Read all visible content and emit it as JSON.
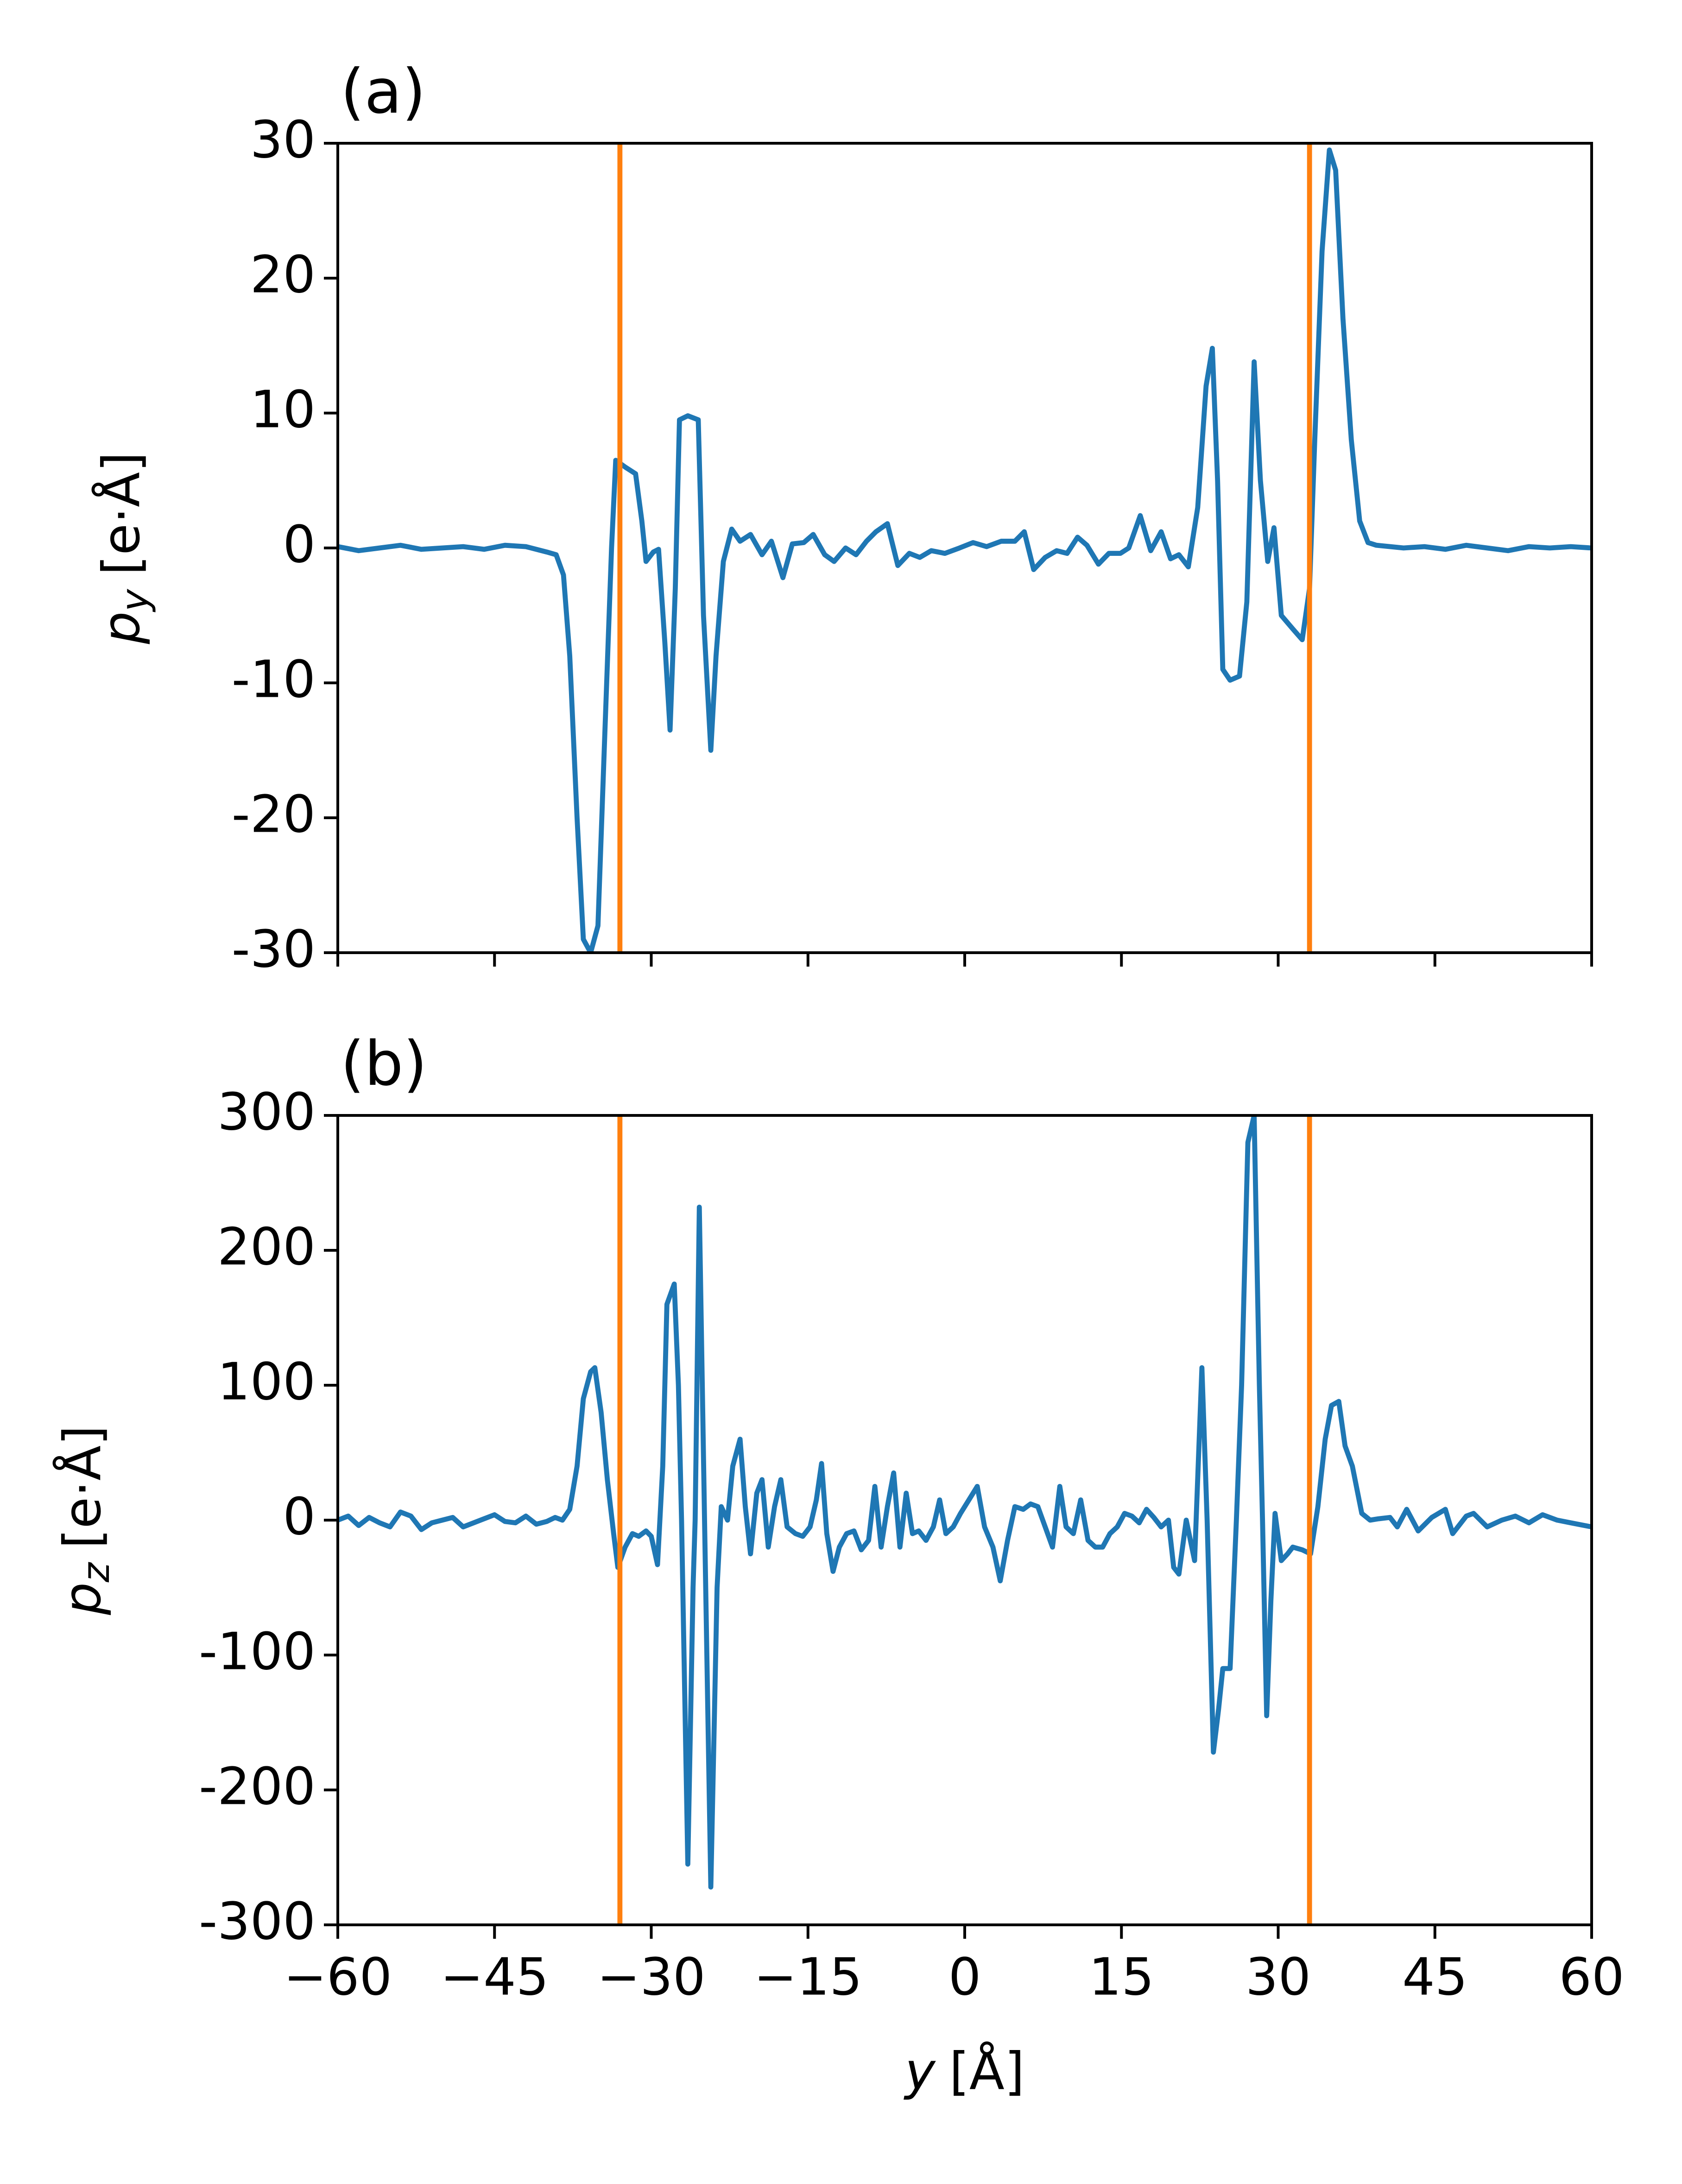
{
  "chart_data": [
    {
      "type": "line",
      "title": "(a)",
      "ylabel": {
        "symbol": "p",
        "subscript": "y",
        "unit": "[e·Å]"
      },
      "color": "#1f77b4",
      "x": [
        -60,
        -58,
        -56,
        -54,
        -52,
        -50,
        -48,
        -46,
        -44,
        -42,
        -40,
        -39.1,
        -38.4,
        -37.8,
        -37.1,
        -36.5,
        -35.8,
        -35.1,
        -34.5,
        -33.8,
        -33.4,
        -32.5,
        -31.5,
        -30.9,
        -30.5,
        -29.8,
        -29.3,
        -28.7,
        -28.2,
        -27.7,
        -27.3,
        -26.5,
        -25.5,
        -25,
        -24.3,
        -23.8,
        -23.1,
        -22.3,
        -21.5,
        -20.5,
        -19.4,
        -18.5,
        -17.4,
        -16.5,
        -15.4,
        -14.5,
        -13.4,
        -12.5,
        -11.4,
        -10.4,
        -9.4,
        -8.5,
        -7.4,
        -6.4,
        -5.3,
        -4.3,
        -3.2,
        -1.9,
        -0.5,
        0.8,
        2.1,
        3.5,
        4.8,
        5.7,
        6.6,
        7.7,
        8.8,
        9.8,
        10.8,
        11.7,
        12.8,
        13.8,
        14.9,
        15.7,
        16.8,
        17.8,
        18.8,
        19.7,
        20.5,
        21.4,
        22.3,
        23.1,
        23.7,
        24.2,
        24.7,
        25.4,
        26.3,
        27,
        27.7,
        28.3,
        29,
        29.6,
        30.3,
        31.4,
        32.3,
        33,
        33.5,
        34.2,
        34.9,
        35.5,
        36.2,
        37,
        37.8,
        38.6,
        39.4,
        42,
        44,
        46,
        48,
        50,
        52,
        54,
        56,
        58,
        60
      ],
      "values": [
        0.1,
        -0.2,
        0,
        0.2,
        -0.1,
        0,
        0.1,
        -0.1,
        0.2,
        0.1,
        -0.3,
        -0.5,
        -2,
        -8,
        -20,
        -29,
        -30,
        -28,
        -15,
        0,
        6.5,
        6,
        5.5,
        2,
        -1,
        -0.3,
        -0.1,
        -7,
        -13.5,
        -3,
        9.5,
        9.8,
        9.5,
        -5,
        -15,
        -8,
        -1,
        1.4,
        0.5,
        1,
        -0.5,
        0.5,
        -2.2,
        0.3,
        0.4,
        1,
        -0.5,
        -1,
        0,
        -0.5,
        0.5,
        1.2,
        1.8,
        -1.3,
        -0.4,
        -0.7,
        -0.2,
        -0.4,
        0,
        0.4,
        0.1,
        0.5,
        0.5,
        1.2,
        -1.6,
        -0.7,
        -0.2,
        -0.4,
        0.8,
        0.2,
        -1.2,
        -0.4,
        -0.4,
        0,
        2.4,
        -0.2,
        1.2,
        -0.8,
        -0.5,
        -1.4,
        3,
        12,
        14.8,
        5,
        -9,
        -9.8,
        -9.5,
        -4,
        13.8,
        5,
        -1,
        1.5,
        -5,
        -6,
        -6.8,
        -3,
        8,
        22,
        29.5,
        28,
        17,
        8,
        2,
        0.4,
        0.2,
        0,
        0.1,
        -0.1,
        0.2,
        0,
        -0.2,
        0.1,
        0,
        0.1,
        0
      ],
      "vlines": [
        {
          "x": -33,
          "color": "#ff7f0e"
        },
        {
          "x": 33,
          "color": "#ff7f0e"
        }
      ],
      "xlim": [
        -60,
        60
      ],
      "xticks": [
        -60,
        -45,
        -30,
        -15,
        0,
        15,
        30,
        45,
        60
      ],
      "ylim": [
        -30,
        30
      ],
      "yticks": [
        -30,
        -20,
        -10,
        0,
        10,
        20,
        30
      ]
    },
    {
      "type": "line",
      "title": "(b)",
      "ylabel": {
        "symbol": "p",
        "subscript": "z",
        "unit": "[e·Å]"
      },
      "xlabel": {
        "symbol": "y",
        "unit": "[Å]"
      },
      "color": "#1f77b4",
      "x": [
        -60,
        -59,
        -58,
        -57,
        -56,
        -55,
        -54,
        -53,
        -52,
        -51,
        -50,
        -49,
        -48,
        -47,
        -46,
        -45,
        -44,
        -43,
        -42,
        -41,
        -40,
        -39.2,
        -38.5,
        -37.8,
        -37.1,
        -36.5,
        -35.8,
        -35.4,
        -34.8,
        -34.2,
        -33.6,
        -33.2,
        -32.5,
        -31.8,
        -31.2,
        -30.5,
        -30,
        -29.4,
        -28.9,
        -28.5,
        -27.8,
        -27.4,
        -27.1,
        -26.5,
        -26,
        -25.8,
        -25.4,
        -24.9,
        -24.3,
        -23.7,
        -23.3,
        -22.7,
        -22.2,
        -21.5,
        -21,
        -20.5,
        -19.9,
        -19.4,
        -18.8,
        -18.2,
        -17.6,
        -17,
        -16.2,
        -15.5,
        -14.8,
        -14.2,
        -13.7,
        -13.2,
        -12.6,
        -12,
        -11.3,
        -10.6,
        -9.9,
        -9.2,
        -8.6,
        -8,
        -7.4,
        -6.8,
        -6.2,
        -5.6,
        -5,
        -4.4,
        -3.7,
        -3,
        -2.4,
        -1.8,
        -1.1,
        -0.4,
        0.4,
        1.2,
        1.9,
        2.7,
        3.4,
        4.1,
        4.8,
        5.6,
        6.3,
        7,
        7.7,
        8.4,
        9.1,
        9.7,
        10.4,
        11.1,
        11.8,
        12.5,
        13.2,
        13.9,
        14.6,
        15.3,
        16,
        16.7,
        17.4,
        18.1,
        18.8,
        19.5,
        20,
        20.5,
        21.2,
        22,
        22.7,
        23.2,
        23.8,
        24.3,
        24.7,
        25.4,
        26,
        26.5,
        27.1,
        27.7,
        28.2,
        28.5,
        28.9,
        29.3,
        29.7,
        30.3,
        30.9,
        31.4,
        32.3,
        33.1,
        33.8,
        34.5,
        35.1,
        35.8,
        36.4,
        37.1,
        38,
        38.8,
        39.6,
        40.7,
        41.4,
        42.3,
        43.4,
        44.7,
        46,
        46.7,
        48,
        48.7,
        50,
        51.4,
        52.7,
        54,
        55.3,
        56.7,
        58,
        60
      ],
      "values": [
        0,
        3,
        -4,
        2,
        -2,
        -5,
        6,
        3,
        -7,
        -2,
        0,
        2,
        -5,
        -2,
        1,
        4,
        -1,
        -2,
        3,
        -3,
        -1,
        2,
        0,
        8,
        40,
        90,
        110,
        113,
        80,
        30,
        -10,
        -35,
        -20,
        -10,
        -12,
        -8,
        -12,
        -33,
        40,
        160,
        175,
        100,
        0,
        -255,
        -50,
        0,
        232,
        0,
        -272,
        -50,
        10,
        0,
        40,
        60,
        10,
        -25,
        20,
        30,
        -20,
        10,
        30,
        -5,
        -10,
        -12,
        -5,
        15,
        42,
        -10,
        -38,
        -20,
        -10,
        -8,
        -22,
        -15,
        25,
        -20,
        10,
        35,
        -20,
        20,
        -10,
        -8,
        -15,
        -5,
        15,
        -10,
        -5,
        5,
        15,
        25,
        -5,
        -20,
        -45,
        -15,
        10,
        8,
        12,
        10,
        -5,
        -20,
        25,
        -5,
        -10,
        15,
        -15,
        -20,
        -20,
        -10,
        -5,
        5,
        3,
        -2,
        8,
        2,
        -5,
        0,
        -35,
        -40,
        0,
        -30,
        113,
        0,
        -172,
        -140,
        -110,
        -110,
        0,
        100,
        280,
        300,
        100,
        0,
        -145,
        -60,
        5,
        -30,
        -25,
        -20,
        -22,
        -25,
        10,
        60,
        85,
        88,
        55,
        40,
        5,
        0,
        1,
        2,
        -5,
        8,
        -8,
        2,
        8,
        -10,
        3,
        5,
        -5,
        0,
        3,
        -2,
        4,
        0,
        -2,
        -5
      ],
      "vlines": [
        {
          "x": -33,
          "color": "#ff7f0e"
        },
        {
          "x": 33,
          "color": "#ff7f0e"
        }
      ],
      "xlim": [
        -60,
        60
      ],
      "xticks": [
        {
          "value": -60,
          "label": "−60"
        },
        {
          "value": -45,
          "label": "−45"
        },
        {
          "value": -30,
          "label": "−30"
        },
        {
          "value": -15,
          "label": "−15"
        },
        0,
        15,
        30,
        45,
        60
      ],
      "ylim": [
        -300,
        300
      ],
      "yticks": [
        -300,
        -200,
        -100,
        0,
        100,
        200,
        300
      ]
    }
  ]
}
